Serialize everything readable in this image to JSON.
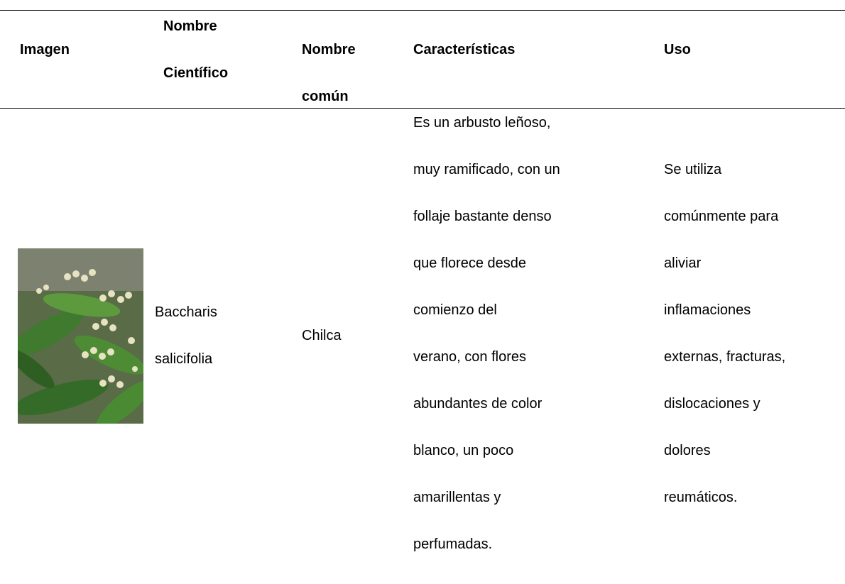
{
  "table": {
    "header": [
      [
        "Imagen"
      ],
      [
        "Nombre",
        "Científico"
      ],
      [
        "Nombre",
        "común"
      ],
      [
        "Características"
      ],
      [
        "Uso"
      ]
    ],
    "rows": [
      [
        [],
        [
          "Baccharis",
          "salicifolia"
        ],
        [
          "Chilca"
        ],
        [
          "Es un arbusto leñoso,",
          "muy ramificado, con un",
          "follaje bastante denso",
          "que florece desde",
          "comienzo del",
          "verano, con flores",
          "abundantes de color",
          "blanco, un poco",
          "amarillentas y",
          "perfumadas."
        ],
        [
          "Se utiliza",
          "comúnmente para",
          "aliviar",
          "inflamaciones",
          "externas, fracturas,",
          "dislocaciones y",
          "dolores",
          "reumáticos."
        ]
      ]
    ]
  }
}
